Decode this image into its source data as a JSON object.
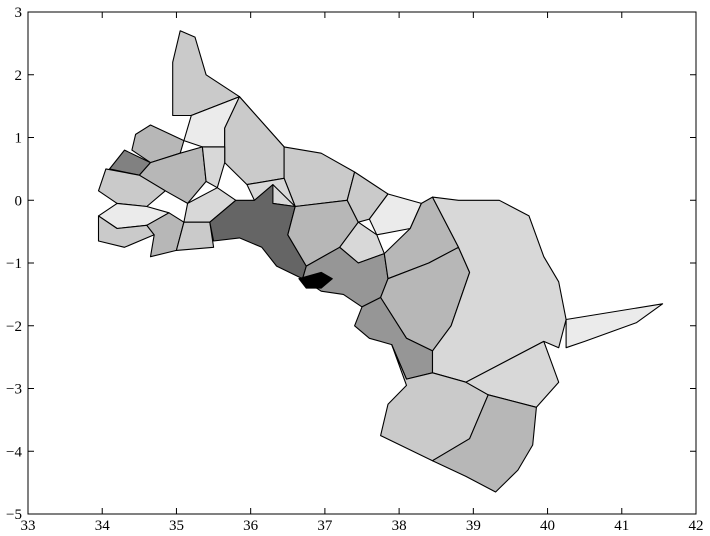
{
  "chart_data": {
    "type": "map",
    "xlim": [
      33,
      42
    ],
    "ylim": [
      -5,
      3
    ],
    "x_ticks": [
      33,
      34,
      35,
      36,
      37,
      38,
      39,
      40,
      41,
      42
    ],
    "y_ticks": [
      -5,
      -4,
      -3,
      -2,
      -1,
      0,
      1,
      2,
      3
    ],
    "x_tick_labels": [
      "33",
      "34",
      "35",
      "36",
      "37",
      "38",
      "39",
      "40",
      "41",
      "42"
    ],
    "y_tick_labels": [
      "−5",
      "−4",
      "−3",
      "−2",
      "−1",
      "0",
      "1",
      "2",
      "3"
    ],
    "grid": false,
    "colormap": "greys",
    "regions": [
      {
        "shade": 0.14,
        "outline": [
          [
            35.05,
            2.7
          ],
          [
            35.25,
            2.6
          ],
          [
            35.4,
            2.0
          ],
          [
            35.85,
            1.65
          ],
          [
            35.2,
            1.35
          ],
          [
            34.95,
            1.35
          ],
          [
            34.95,
            2.2
          ]
        ]
      },
      {
        "shade": 0.08,
        "outline": [
          [
            35.85,
            1.65
          ],
          [
            36.45,
            0.85
          ],
          [
            36.25,
            0.8
          ],
          [
            35.65,
            0.85
          ],
          [
            35.65,
            1.15
          ],
          [
            35.2,
            1.35
          ]
        ]
      },
      {
        "shade": 0.0,
        "outline": [
          [
            35.85,
            1.65
          ],
          [
            35.65,
            1.15
          ],
          [
            35.65,
            0.85
          ],
          [
            35.35,
            0.85
          ],
          [
            35.1,
            0.95
          ],
          [
            35.2,
            1.35
          ]
        ]
      },
      {
        "shade": 0.14,
        "outline": [
          [
            35.85,
            1.65
          ],
          [
            36.45,
            0.85
          ],
          [
            36.45,
            0.35
          ],
          [
            35.95,
            0.25
          ],
          [
            35.65,
            0.6
          ],
          [
            35.65,
            1.15
          ]
        ]
      },
      {
        "shade": 0.14,
        "outline": [
          [
            36.45,
            0.85
          ],
          [
            36.95,
            0.75
          ],
          [
            37.4,
            0.45
          ],
          [
            37.3,
            0.0
          ],
          [
            36.6,
            -0.1
          ],
          [
            36.45,
            0.35
          ]
        ]
      },
      {
        "shade": 0.22,
        "outline": [
          [
            34.65,
            1.2
          ],
          [
            35.1,
            0.95
          ],
          [
            35.05,
            0.75
          ],
          [
            34.65,
            0.6
          ],
          [
            34.4,
            0.8
          ],
          [
            34.45,
            1.05
          ]
        ]
      },
      {
        "shade": 0.45,
        "outline": [
          [
            34.3,
            0.8
          ],
          [
            34.65,
            0.6
          ],
          [
            34.5,
            0.4
          ],
          [
            34.1,
            0.5
          ]
        ]
      },
      {
        "shade": 0.22,
        "outline": [
          [
            34.65,
            0.6
          ],
          [
            35.05,
            0.75
          ],
          [
            35.35,
            0.85
          ],
          [
            35.4,
            0.3
          ],
          [
            35.15,
            -0.05
          ],
          [
            34.85,
            0.15
          ],
          [
            34.5,
            0.4
          ]
        ]
      },
      {
        "shade": 0.08,
        "outline": [
          [
            35.35,
            0.85
          ],
          [
            35.65,
            0.85
          ],
          [
            35.65,
            0.6
          ],
          [
            35.55,
            0.2
          ],
          [
            35.4,
            0.3
          ]
        ]
      },
      {
        "shade": 0.14,
        "outline": [
          [
            34.05,
            0.5
          ],
          [
            34.5,
            0.4
          ],
          [
            34.85,
            0.15
          ],
          [
            34.6,
            -0.1
          ],
          [
            34.2,
            -0.05
          ],
          [
            33.95,
            0.15
          ]
        ]
      },
      {
        "shade": 0.0,
        "outline": [
          [
            34.2,
            -0.05
          ],
          [
            34.6,
            -0.1
          ],
          [
            34.9,
            -0.2
          ],
          [
            34.6,
            -0.4
          ],
          [
            34.2,
            -0.45
          ],
          [
            33.95,
            -0.25
          ]
        ]
      },
      {
        "shade": 0.14,
        "outline": [
          [
            33.95,
            -0.25
          ],
          [
            34.2,
            -0.45
          ],
          [
            34.6,
            -0.4
          ],
          [
            34.7,
            -0.55
          ],
          [
            34.3,
            -0.75
          ],
          [
            33.95,
            -0.65
          ]
        ]
      },
      {
        "shade": 0.22,
        "outline": [
          [
            34.6,
            -0.4
          ],
          [
            34.9,
            -0.2
          ],
          [
            35.1,
            -0.35
          ],
          [
            35.0,
            -0.8
          ],
          [
            34.65,
            -0.9
          ],
          [
            34.7,
            -0.55
          ]
        ]
      },
      {
        "shade": 0.08,
        "outline": [
          [
            35.15,
            -0.05
          ],
          [
            35.55,
            0.2
          ],
          [
            35.8,
            0.0
          ],
          [
            35.45,
            -0.35
          ],
          [
            35.1,
            -0.35
          ]
        ]
      },
      {
        "shade": 0.14,
        "outline": [
          [
            35.1,
            -0.35
          ],
          [
            35.45,
            -0.35
          ],
          [
            35.5,
            -0.75
          ],
          [
            35.0,
            -0.8
          ]
        ]
      },
      {
        "shade": 0.08,
        "outline": [
          [
            35.95,
            0.25
          ],
          [
            36.45,
            0.35
          ],
          [
            36.6,
            -0.1
          ],
          [
            36.3,
            -0.05
          ],
          [
            36.05,
            0.0
          ]
        ]
      },
      {
        "shade": 0.57,
        "outline": [
          [
            35.45,
            -0.35
          ],
          [
            35.8,
            0.0
          ],
          [
            36.05,
            0.0
          ],
          [
            36.3,
            0.25
          ],
          [
            36.3,
            -0.05
          ],
          [
            36.6,
            -0.1
          ],
          [
            36.5,
            -0.55
          ],
          [
            36.75,
            -1.05
          ],
          [
            36.7,
            -1.25
          ],
          [
            36.35,
            -1.05
          ],
          [
            36.15,
            -0.75
          ],
          [
            35.85,
            -0.6
          ],
          [
            35.5,
            -0.65
          ]
        ]
      },
      {
        "shade": 0.22,
        "outline": [
          [
            36.3,
            0.25
          ],
          [
            36.6,
            -0.1
          ],
          [
            37.3,
            0.0
          ],
          [
            37.45,
            -0.35
          ],
          [
            37.2,
            -0.75
          ],
          [
            36.75,
            -1.05
          ],
          [
            36.5,
            -0.55
          ],
          [
            36.6,
            -0.1
          ]
        ]
      },
      {
        "shade": 0.14,
        "outline": [
          [
            37.3,
            0.0
          ],
          [
            37.4,
            0.45
          ],
          [
            37.85,
            0.1
          ],
          [
            37.6,
            -0.3
          ],
          [
            37.45,
            -0.35
          ]
        ]
      },
      {
        "shade": 0.0,
        "outline": [
          [
            37.85,
            0.1
          ],
          [
            38.3,
            -0.05
          ],
          [
            38.15,
            -0.45
          ],
          [
            37.7,
            -0.55
          ],
          [
            37.6,
            -0.3
          ]
        ]
      },
      {
        "shade": 0.08,
        "outline": [
          [
            37.2,
            -0.75
          ],
          [
            37.45,
            -0.35
          ],
          [
            37.7,
            -0.55
          ],
          [
            37.8,
            -0.85
          ],
          [
            37.45,
            -1.0
          ]
        ]
      },
      {
        "shade": 0.36,
        "outline": [
          [
            36.7,
            -1.25
          ],
          [
            36.75,
            -1.05
          ],
          [
            37.2,
            -0.75
          ],
          [
            37.45,
            -1.0
          ],
          [
            37.8,
            -0.85
          ],
          [
            37.85,
            -1.25
          ],
          [
            37.75,
            -1.55
          ],
          [
            37.5,
            -1.7
          ],
          [
            37.25,
            -1.5
          ],
          [
            36.95,
            -1.45
          ]
        ]
      },
      {
        "shade": 0.22,
        "outline": [
          [
            37.8,
            -0.85
          ],
          [
            38.15,
            -0.45
          ],
          [
            38.3,
            -0.05
          ],
          [
            38.45,
            0.05
          ],
          [
            38.8,
            -0.75
          ],
          [
            38.4,
            -1.0
          ],
          [
            37.85,
            -1.25
          ]
        ]
      },
      {
        "shade": 0.22,
        "outline": [
          [
            37.75,
            -1.55
          ],
          [
            37.85,
            -1.25
          ],
          [
            38.4,
            -1.0
          ],
          [
            38.8,
            -0.75
          ],
          [
            38.95,
            -1.15
          ],
          [
            38.7,
            -2.0
          ],
          [
            38.45,
            -2.4
          ],
          [
            38.1,
            -2.2
          ]
        ]
      },
      {
        "shade": 0.36,
        "outline": [
          [
            37.5,
            -1.7
          ],
          [
            37.75,
            -1.55
          ],
          [
            38.1,
            -2.2
          ],
          [
            38.45,
            -2.4
          ],
          [
            38.45,
            -2.75
          ],
          [
            38.1,
            -2.85
          ],
          [
            37.9,
            -2.3
          ],
          [
            37.6,
            -2.2
          ],
          [
            37.4,
            -2.0
          ]
        ]
      },
      {
        "shade": 1.0,
        "outline": [
          [
            36.65,
            -1.25
          ],
          [
            36.95,
            -1.15
          ],
          [
            37.1,
            -1.25
          ],
          [
            36.95,
            -1.4
          ],
          [
            36.75,
            -1.4
          ]
        ]
      },
      {
        "shade": 0.08,
        "outline": [
          [
            38.45,
            0.05
          ],
          [
            38.8,
            -0.75
          ],
          [
            38.95,
            -1.15
          ],
          [
            38.7,
            -2.0
          ],
          [
            38.45,
            -2.4
          ],
          [
            38.45,
            -2.75
          ],
          [
            38.9,
            -2.9
          ],
          [
            39.95,
            -2.25
          ],
          [
            40.15,
            -2.35
          ],
          [
            40.25,
            -1.9
          ],
          [
            40.15,
            -1.3
          ],
          [
            39.95,
            -0.9
          ],
          [
            39.75,
            -0.25
          ],
          [
            39.35,
            0.0
          ],
          [
            38.8,
            0.0
          ]
        ]
      },
      {
        "shade": 0.14,
        "outline": [
          [
            37.9,
            -2.3
          ],
          [
            38.1,
            -2.85
          ],
          [
            38.45,
            -2.75
          ],
          [
            38.9,
            -2.9
          ],
          [
            39.2,
            -3.1
          ],
          [
            38.95,
            -3.8
          ],
          [
            38.45,
            -4.15
          ],
          [
            37.75,
            -3.75
          ],
          [
            37.85,
            -3.25
          ],
          [
            38.1,
            -2.95
          ]
        ]
      },
      {
        "shade": 0.08,
        "outline": [
          [
            38.9,
            -2.9
          ],
          [
            39.95,
            -2.25
          ],
          [
            40.15,
            -2.9
          ],
          [
            39.85,
            -3.3
          ],
          [
            39.2,
            -3.1
          ]
        ]
      },
      {
        "shade": 0.22,
        "outline": [
          [
            38.45,
            -4.15
          ],
          [
            38.95,
            -3.8
          ],
          [
            39.2,
            -3.1
          ],
          [
            39.85,
            -3.3
          ],
          [
            39.8,
            -3.9
          ],
          [
            39.6,
            -4.3
          ],
          [
            39.3,
            -4.65
          ],
          [
            38.9,
            -4.4
          ]
        ]
      },
      {
        "shade": 0.0,
        "outline": [
          [
            40.25,
            -1.9
          ],
          [
            41.55,
            -1.65
          ],
          [
            41.2,
            -1.95
          ],
          [
            40.85,
            -2.1
          ],
          [
            40.5,
            -2.25
          ],
          [
            40.25,
            -2.35
          ]
        ]
      }
    ]
  }
}
